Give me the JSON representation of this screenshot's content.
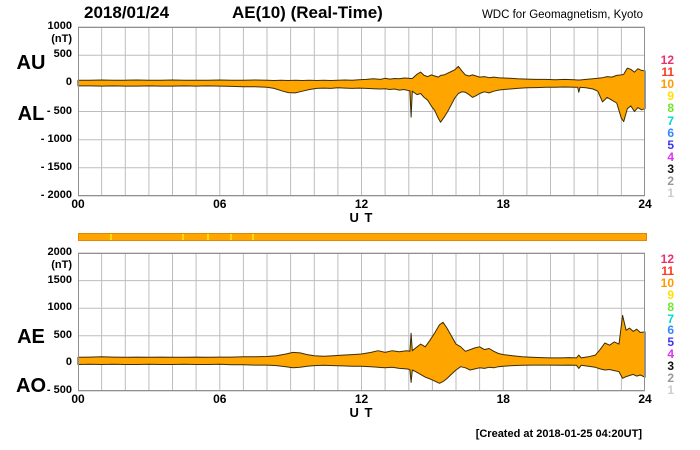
{
  "header": {
    "date": "2018/01/24",
    "title": "AE(10) (Real-Time)",
    "org": "WDC for Geomagnetism, Kyoto"
  },
  "footer": {
    "created": "[Created at 2018-01-25 04:20UT]"
  },
  "colors": {
    "area_fill": "#ffa500",
    "area_outline": "#3a2d0a",
    "grid": "#bdbdbd",
    "frame": "#8f8f8f",
    "background": "#ffffff"
  },
  "station_legend": {
    "numbers": [
      12,
      11,
      10,
      9,
      8,
      7,
      6,
      5,
      4,
      3,
      2,
      1
    ],
    "colors": [
      "#e8306a",
      "#f93822",
      "#ff9900",
      "#ffe000",
      "#70e52c",
      "#00d8cf",
      "#3388ff",
      "#4236ef",
      "#dd33ee",
      "#111111",
      "#999999",
      "#cccccc"
    ]
  },
  "availability_bar": {
    "fill": "#ffa500",
    "border": "#e08900",
    "tick_color": "#ffe000",
    "tick_hours": [
      1.3,
      4.35,
      5.4,
      6.35,
      7.3
    ]
  },
  "chart_data": [
    {
      "type": "area",
      "panel": "AU/AL",
      "title": "AE(10) (Real-Time)",
      "xlabel": "U T",
      "unit_label": "(nT)",
      "xlim": [
        0,
        24
      ],
      "ylim": [
        -2000,
        1000
      ],
      "grid": true,
      "legend_position": "right",
      "xtick_values": [
        0,
        6,
        12,
        18,
        24
      ],
      "xtick_labels": [
        "00",
        "06",
        "12",
        "18",
        "24"
      ],
      "ytick_values": [
        1000,
        500,
        0,
        -500,
        -1000,
        -1500,
        -2000
      ],
      "ytick_labels": [
        "1000",
        "500",
        "0",
        "- 500",
        "- 1000",
        "- 1500",
        "- 2000"
      ],
      "left_labels": [
        "AU",
        "AL"
      ],
      "x": [
        0,
        0.5,
        1,
        1.5,
        2,
        2.5,
        3,
        3.5,
        4,
        4.5,
        5,
        5.5,
        6,
        6.5,
        7,
        7.5,
        8,
        8.3,
        8.6,
        8.9,
        9.2,
        9.5,
        9.8,
        10.1,
        10.4,
        10.7,
        11,
        11.3,
        11.6,
        11.9,
        12.2,
        12.5,
        12.8,
        13,
        13.2,
        13.4,
        13.6,
        13.8,
        14,
        14.05,
        14.1,
        14.15,
        14.35,
        14.5,
        14.65,
        14.8,
        14.95,
        15.1,
        15.25,
        15.35,
        15.5,
        15.65,
        15.8,
        15.95,
        16.1,
        16.25,
        16.4,
        16.55,
        16.7,
        16.85,
        17,
        17.2,
        17.4,
        17.6,
        17.8,
        18,
        18.3,
        18.6,
        19,
        19.4,
        19.8,
        20.2,
        20.6,
        21,
        21.15,
        21.2,
        21.25,
        21.5,
        21.8,
        22,
        22.2,
        22.4,
        22.6,
        22.8,
        23,
        23.1,
        23.25,
        23.4,
        23.55,
        23.7,
        23.85,
        24
      ],
      "series": [
        {
          "name": "AU",
          "values": [
            55,
            55,
            60,
            55,
            55,
            60,
            55,
            55,
            60,
            55,
            55,
            55,
            60,
            55,
            55,
            60,
            55,
            50,
            55,
            50,
            55,
            50,
            55,
            50,
            55,
            50,
            55,
            60,
            55,
            65,
            70,
            80,
            70,
            90,
            75,
            85,
            80,
            95,
            90,
            85,
            85,
            85,
            160,
            200,
            140,
            120,
            150,
            130,
            110,
            140,
            150,
            180,
            210,
            240,
            300,
            220,
            150,
            130,
            150,
            130,
            110,
            120,
            100,
            110,
            100,
            95,
            90,
            80,
            75,
            70,
            70,
            65,
            70,
            65,
            60,
            60,
            60,
            70,
            80,
            90,
            100,
            120,
            110,
            140,
            150,
            160,
            270,
            250,
            200,
            260,
            230,
            220
          ]
        },
        {
          "name": "AL",
          "values": [
            -45,
            -45,
            -50,
            -45,
            -50,
            -50,
            -45,
            -50,
            -50,
            -45,
            -50,
            -45,
            -50,
            -55,
            -60,
            -60,
            -70,
            -90,
            -130,
            -165,
            -170,
            -140,
            -110,
            -90,
            -85,
            -90,
            -80,
            -85,
            -90,
            -85,
            -90,
            -95,
            -100,
            -95,
            -110,
            -100,
            -120,
            -110,
            -130,
            -130,
            -600,
            -140,
            -200,
            -180,
            -250,
            -300,
            -400,
            -480,
            -620,
            -690,
            -600,
            -500,
            -380,
            -260,
            -180,
            -150,
            -160,
            -200,
            -250,
            -220,
            -180,
            -150,
            -170,
            -140,
            -120,
            -110,
            -100,
            -90,
            -80,
            -75,
            -70,
            -70,
            -65,
            -70,
            -70,
            -160,
            -70,
            -80,
            -100,
            -140,
            -330,
            -250,
            -300,
            -350,
            -620,
            -680,
            -450,
            -400,
            -500,
            -430,
            -470,
            -450
          ]
        }
      ]
    },
    {
      "type": "area",
      "panel": "AE/AO",
      "title": "AE(10) (Real-Time)",
      "xlabel": "U T",
      "unit_label": "(nT)",
      "xlim": [
        0,
        24
      ],
      "ylim": [
        -500,
        2000
      ],
      "grid": true,
      "legend_position": "right",
      "xtick_values": [
        0,
        6,
        12,
        18,
        24
      ],
      "xtick_labels": [
        "00",
        "06",
        "12",
        "18",
        "24"
      ],
      "ytick_values": [
        2000,
        1500,
        1000,
        500,
        0,
        -500
      ],
      "ytick_labels": [
        "2000",
        "1500",
        "1000",
        "500",
        "0",
        "- 500"
      ],
      "left_labels": [
        "AE",
        "AO"
      ],
      "x": [
        0,
        0.5,
        1,
        1.5,
        2,
        2.5,
        3,
        3.5,
        4,
        4.5,
        5,
        5.5,
        6,
        6.5,
        7,
        7.5,
        8,
        8.4,
        8.8,
        9.1,
        9.4,
        9.7,
        10,
        10.4,
        10.8,
        11.2,
        11.6,
        12,
        12.4,
        12.7,
        13,
        13.3,
        13.6,
        13.9,
        14.05,
        14.1,
        14.15,
        14.3,
        14.5,
        14.7,
        14.9,
        15.1,
        15.3,
        15.45,
        15.6,
        15.8,
        16,
        16.2,
        16.4,
        16.6,
        16.8,
        17,
        17.2,
        17.4,
        17.6,
        17.8,
        18,
        18.4,
        18.8,
        19.2,
        19.6,
        20,
        20.4,
        20.8,
        21.1,
        21.2,
        21.3,
        21.6,
        21.9,
        22.1,
        22.3,
        22.5,
        22.7,
        22.9,
        23.05,
        23.2,
        23.35,
        23.5,
        23.65,
        23.8,
        24
      ],
      "series": [
        {
          "name": "AE",
          "values": [
            110,
            115,
            120,
            115,
            110,
            115,
            110,
            115,
            110,
            110,
            115,
            110,
            115,
            115,
            120,
            120,
            125,
            140,
            170,
            200,
            190,
            160,
            140,
            130,
            140,
            150,
            160,
            170,
            200,
            230,
            200,
            230,
            210,
            230,
            220,
            545,
            230,
            280,
            350,
            300,
            420,
            550,
            700,
            745,
            650,
            500,
            350,
            300,
            220,
            250,
            280,
            300,
            250,
            270,
            220,
            180,
            160,
            140,
            120,
            110,
            105,
            100,
            100,
            105,
            100,
            150,
            100,
            120,
            150,
            250,
            370,
            330,
            390,
            350,
            870,
            600,
            640,
            580,
            620,
            560,
            570
          ]
        },
        {
          "name": "AO",
          "values": [
            -20,
            -15,
            -20,
            -15,
            -20,
            -20,
            -15,
            -20,
            -20,
            -15,
            -20,
            -20,
            -15,
            -25,
            -25,
            -30,
            -30,
            -40,
            -60,
            -80,
            -70,
            -50,
            -40,
            -35,
            -40,
            -45,
            -50,
            -50,
            -60,
            -70,
            -80,
            -70,
            -90,
            -100,
            -110,
            -345,
            -120,
            -150,
            -200,
            -250,
            -280,
            -320,
            -360,
            -330,
            -280,
            -200,
            -120,
            -60,
            -80,
            -120,
            -100,
            -80,
            -90,
            -70,
            -80,
            -60,
            -50,
            -40,
            -35,
            -30,
            -30,
            -30,
            -35,
            -30,
            -35,
            -90,
            -35,
            -50,
            -70,
            -100,
            -120,
            -110,
            -130,
            -150,
            -270,
            -240,
            -220,
            -200,
            -230,
            -210,
            -250
          ]
        }
      ]
    }
  ]
}
